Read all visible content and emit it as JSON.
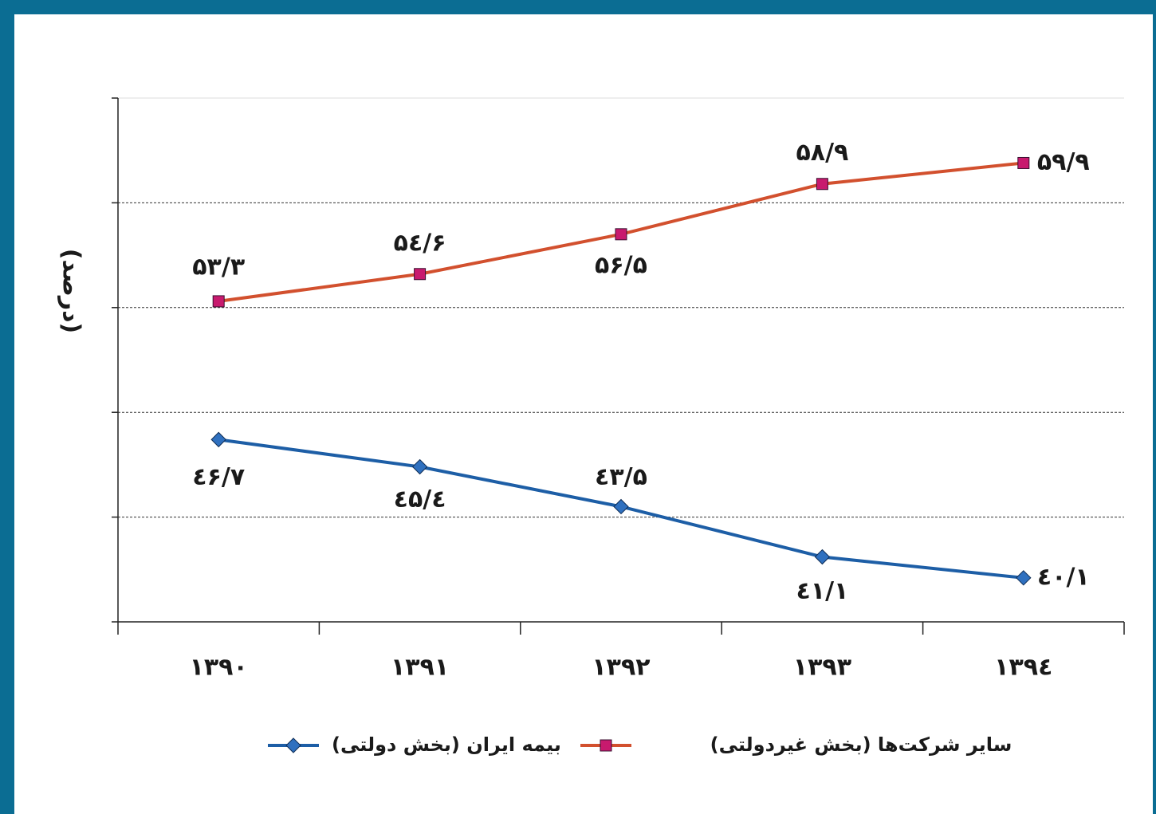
{
  "chart_data": {
    "type": "line",
    "y_label": "(درصد)",
    "categories": [
      "۱۳۹۰",
      "۱۳۹۱",
      "۱۳۹۲",
      "۱۳۹۳",
      "۱۳۹٤"
    ],
    "ylim": [
      38,
      63
    ],
    "yticks": [
      38,
      43,
      48,
      53,
      58,
      63
    ],
    "grid": true,
    "series": [
      {
        "name": "سایر شرکت‌ها (بخش غیردولتی)",
        "color": "#d2502e",
        "marker": "square",
        "marker_color": "#c81a6e",
        "values": [
          53.3,
          54.6,
          56.5,
          58.9,
          59.9
        ],
        "value_labels": [
          "۵۳/۳",
          "۵٤/۶",
          "۵۶/۵",
          "۵۸/۹",
          "۵۹/۹"
        ]
      },
      {
        "name": "بیمه ایران (بخش دولتی)",
        "color": "#1d5ea6",
        "marker": "diamond",
        "marker_color": "#2f70bf",
        "values": [
          46.7,
          45.4,
          43.5,
          41.1,
          40.1
        ],
        "value_labels": [
          "٤۶/۷",
          "٤۵/٤",
          "٤۳/۵",
          "٤۱/۱",
          "٤۰/۱"
        ]
      }
    ]
  }
}
